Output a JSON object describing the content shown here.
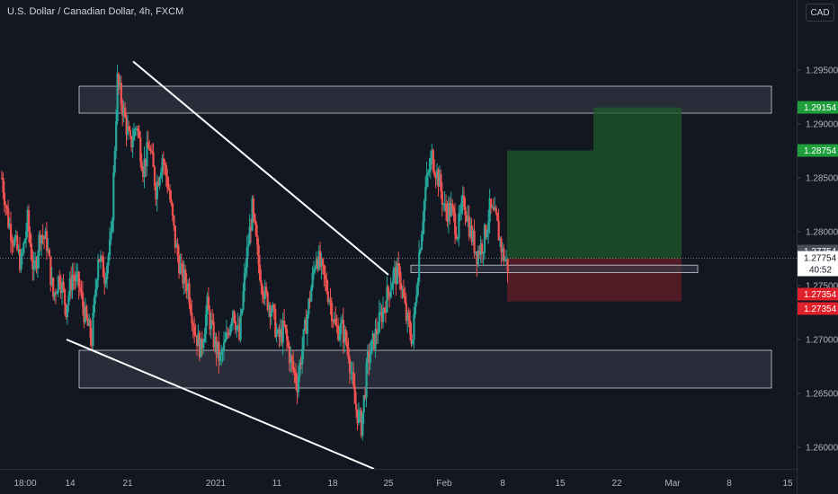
{
  "header": {
    "title": "U.S. Dollar / Canadian Dollar, 4h, FXCM",
    "currency": "CAD"
  },
  "colors": {
    "background": "#131722",
    "bull": "#26a69a",
    "bear": "#ef5350",
    "profit_zone": "#1f5a2a",
    "loss_zone": "#5c1c26",
    "zone_fill": "#3a3f4c",
    "trendline": "#ffffff",
    "axis_text": "#b2b5be"
  },
  "chart_data": {
    "type": "candlestick",
    "title": "U.S. Dollar / Canadian Dollar, 4h, FXCM",
    "ylim": [
      1.258,
      1.299
    ],
    "y_ticks": [
      "1.29500",
      "1.29000",
      "1.28500",
      "1.28000",
      "1.27500",
      "1.27000",
      "1.26500",
      "1.26000"
    ],
    "x_ticks": [
      "18:00",
      "14",
      "21",
      "2021",
      "11",
      "18",
      "25",
      "Feb",
      "8",
      "15",
      "22",
      "Mar",
      "8",
      "15"
    ],
    "price_path": [
      1.285,
      1.281,
      1.279,
      1.277,
      1.281,
      1.276,
      1.28,
      1.279,
      1.274,
      1.276,
      1.273,
      1.276,
      1.275,
      1.272,
      1.27,
      1.278,
      1.276,
      1.279,
      1.294,
      1.291,
      1.288,
      1.29,
      1.286,
      1.288,
      1.284,
      1.287,
      1.284,
      1.279,
      1.276,
      1.275,
      1.271,
      1.269,
      1.273,
      1.27,
      1.268,
      1.27,
      1.273,
      1.27,
      1.277,
      1.282,
      1.277,
      1.274,
      1.273,
      1.27,
      1.271,
      1.268,
      1.266,
      1.27,
      1.274,
      1.278,
      1.276,
      1.274,
      1.271,
      1.271,
      1.269,
      1.264,
      1.262,
      1.268,
      1.27,
      1.272,
      1.274,
      1.276,
      1.276,
      1.272,
      1.27,
      1.278,
      1.284,
      1.287,
      1.285,
      1.282,
      1.282,
      1.28,
      1.283,
      1.28,
      1.278,
      1.279,
      1.282,
      1.281,
      1.278,
      1.2765
    ],
    "last_price": "1.27754",
    "countdown": "40:52",
    "price_labels": [
      {
        "text": "1.29154",
        "kind": "target"
      },
      {
        "text": "1.28754",
        "kind": "target"
      },
      {
        "text": "1.27754",
        "kind": "entry"
      },
      {
        "text": "1.27754",
        "kind": "entry"
      },
      {
        "text": "1.27354",
        "kind": "stop"
      },
      {
        "text": "1.27354",
        "kind": "stop"
      }
    ],
    "resistance_zone": [
      1.291,
      1.2935
    ],
    "support_zone": [
      1.2655,
      1.269
    ],
    "entry_zone": [
      1.2762,
      1.2769
    ],
    "trade_position": {
      "entry": 1.27754,
      "target": 1.29154,
      "target2": 1.28754,
      "stop": 1.27354
    },
    "grid": false
  }
}
